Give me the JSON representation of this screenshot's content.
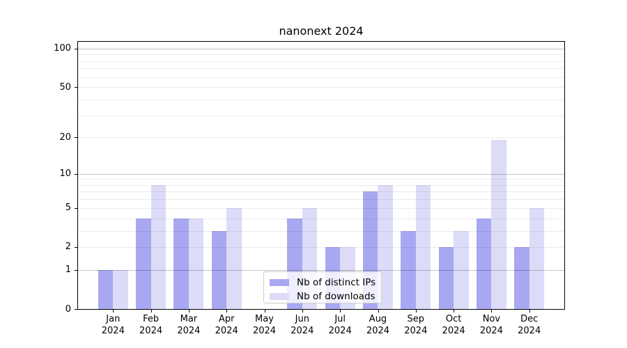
{
  "title": "nanonext 2024",
  "chart_data": {
    "type": "bar",
    "title": "nanonext 2024",
    "categories": [
      "Jan",
      "Feb",
      "Mar",
      "Apr",
      "May",
      "Jun",
      "Jul",
      "Aug",
      "Sep",
      "Oct",
      "Nov",
      "Dec"
    ],
    "year_label": "2024",
    "series": [
      {
        "name": "Nb of distinct IPs",
        "color": "#a8a8f2",
        "values": [
          1,
          4,
          4,
          3,
          0,
          4,
          2,
          7,
          3,
          2,
          4,
          2
        ]
      },
      {
        "name": "Nb of downloads",
        "color": "#dcdcf8",
        "values": [
          1,
          8,
          4,
          5,
          0,
          5,
          2,
          8,
          8,
          3,
          19,
          5
        ]
      }
    ],
    "xlabel": "",
    "ylabel": "",
    "yscale": "log1p",
    "ylim": [
      0,
      113
    ],
    "yticks": [
      0,
      1,
      2,
      5,
      10,
      20,
      50,
      100
    ],
    "grid_major_values": [
      1,
      10,
      100
    ],
    "grid_minor_values": [
      2,
      3,
      4,
      5,
      6,
      7,
      8,
      9,
      20,
      30,
      40,
      50,
      60,
      70,
      80,
      90
    ],
    "grid": true,
    "legend_position": "inside-bottom-center",
    "colors": {
      "background": "#ffffff",
      "axis": "#000000",
      "grid_major": "#c2c2c2",
      "grid_minor": "#ececec",
      "legend_border": "#cccccc"
    }
  }
}
